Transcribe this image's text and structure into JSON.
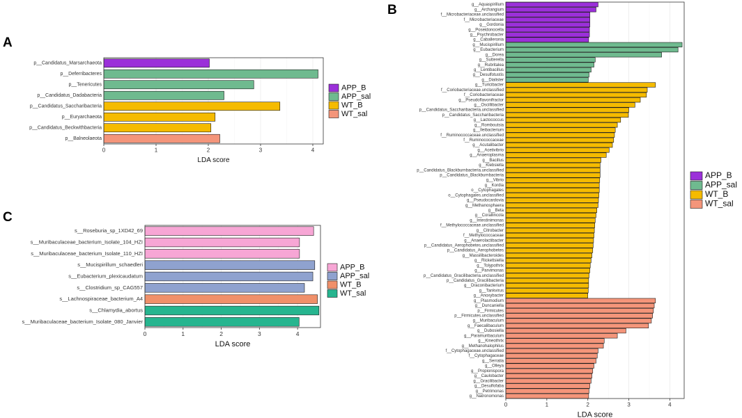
{
  "colors": {
    "APP_B": "#9b30d9",
    "APP_sal": "#6fba8f",
    "WT_B": "#f5bb00",
    "WT_sal": "#f4957a",
    "C_APP_B": "#f7a6d5",
    "C_APP_sal": "#8fa2cf",
    "C_WT_B": "#f0906a",
    "C_WT_sal": "#26b58f"
  },
  "chart_data": [
    {
      "panel": "A",
      "type": "bar",
      "orientation": "horizontal",
      "xlabel": "LDA score",
      "ylabel": "",
      "xlim": [
        0,
        4.2
      ],
      "ticks": [
        0,
        1,
        2,
        3,
        4
      ],
      "grid": true,
      "legend_position": "right",
      "legend": [
        {
          "label": "APP_B",
          "color_key": "APP_B"
        },
        {
          "label": "APP_sal",
          "color_key": "APP_sal"
        },
        {
          "label": "WT_B",
          "color_key": "WT_B"
        },
        {
          "label": "WT_sal",
          "color_key": "WT_sal"
        }
      ],
      "bars": [
        {
          "label": "p__Candidatus_Marsarchaeota",
          "value": 2.02,
          "group": "APP_B"
        },
        {
          "label": "p__Deferribacteres",
          "value": 4.1,
          "group": "APP_sal"
        },
        {
          "label": "p__Tenericutes",
          "value": 2.87,
          "group": "APP_sal"
        },
        {
          "label": "p__Candidatus_Dadabacteria",
          "value": 2.3,
          "group": "APP_sal"
        },
        {
          "label": "p__Candidatus_Saccharibacteria",
          "value": 3.37,
          "group": "WT_B"
        },
        {
          "label": "p__Euryarchaeota",
          "value": 2.13,
          "group": "WT_B"
        },
        {
          "label": "p__Candidatus_Beckwithbacteria",
          "value": 2.05,
          "group": "WT_B"
        },
        {
          "label": "p__Balneolaeota",
          "value": 2.22,
          "group": "WT_sal"
        }
      ]
    },
    {
      "panel": "B",
      "type": "bar",
      "orientation": "horizontal",
      "xlabel": "LDA score",
      "ylabel": "",
      "xlim": [
        0,
        4.35
      ],
      "ticks": [
        0,
        1,
        2,
        3,
        4
      ],
      "grid": true,
      "legend_position": "right",
      "legend": [
        {
          "label": "APP_B",
          "color_key": "APP_B"
        },
        {
          "label": "APP_sal",
          "color_key": "APP_sal"
        },
        {
          "label": "WT_B",
          "color_key": "WT_B"
        },
        {
          "label": "WT_sal",
          "color_key": "WT_sal"
        }
      ],
      "bars": [
        {
          "label": "g__Aquaspirillum",
          "value": 2.25,
          "group": "APP_B"
        },
        {
          "label": "g__Archangium",
          "value": 2.2,
          "group": "APP_B"
        },
        {
          "label": "f__Microbacteriaceae.unclassified",
          "value": 2.05,
          "group": "APP_B"
        },
        {
          "label": "f__Microbacteriaceae",
          "value": 2.05,
          "group": "APP_B"
        },
        {
          "label": "g__Gordonia",
          "value": 2.05,
          "group": "APP_B"
        },
        {
          "label": "g__Poseidonocella",
          "value": 2.04,
          "group": "APP_B"
        },
        {
          "label": "g__Psychrobacter",
          "value": 2.04,
          "group": "APP_B"
        },
        {
          "label": "g__Caballeronia",
          "value": 2.02,
          "group": "APP_B"
        },
        {
          "label": "g__Mucispirillum",
          "value": 4.3,
          "group": "APP_sal"
        },
        {
          "label": "g__Eubacterium",
          "value": 4.2,
          "group": "APP_sal"
        },
        {
          "label": "g__Dorea",
          "value": 3.8,
          "group": "APP_sal"
        },
        {
          "label": "g__Sutterella",
          "value": 2.18,
          "group": "APP_sal"
        },
        {
          "label": "g__Rubritalea",
          "value": 2.15,
          "group": "APP_sal"
        },
        {
          "label": "g__Lentibacillus",
          "value": 2.08,
          "group": "APP_sal"
        },
        {
          "label": "g__Desulfotustis",
          "value": 2.03,
          "group": "APP_sal"
        },
        {
          "label": "g__Dialister",
          "value": 2.01,
          "group": "APP_sal"
        },
        {
          "label": "g__Turicibacter",
          "value": 3.65,
          "group": "WT_B"
        },
        {
          "label": "f__Coriobacteriaceae.unclassified",
          "value": 3.45,
          "group": "WT_B"
        },
        {
          "label": "f__Coriobacteriaceae",
          "value": 3.43,
          "group": "WT_B"
        },
        {
          "label": "g__Pseudoflavonifractor",
          "value": 3.28,
          "group": "WT_B"
        },
        {
          "label": "g__Oscillibacter",
          "value": 3.15,
          "group": "WT_B"
        },
        {
          "label": "p__Candidatus_Saccharibacteria.unclassified",
          "value": 3.0,
          "group": "WT_B"
        },
        {
          "label": "p__Candidatus_Saccharibacteria",
          "value": 2.99,
          "group": "WT_B"
        },
        {
          "label": "g__Lactococcus",
          "value": 2.8,
          "group": "WT_B"
        },
        {
          "label": "g__Romboutsia",
          "value": 2.72,
          "group": "WT_B"
        },
        {
          "label": "g__Ileibacterium",
          "value": 2.67,
          "group": "WT_B"
        },
        {
          "label": "f__Ruminococcaceae.unclassified",
          "value": 2.65,
          "group": "WT_B"
        },
        {
          "label": "f__Ruminococcaceae",
          "value": 2.63,
          "group": "WT_B"
        },
        {
          "label": "g__Acutalibacter",
          "value": 2.6,
          "group": "WT_B"
        },
        {
          "label": "g__Acetivibrio",
          "value": 2.52,
          "group": "WT_B"
        },
        {
          "label": "g__Anaeroplasma",
          "value": 2.45,
          "group": "WT_B"
        },
        {
          "label": "g__Bacillus",
          "value": 2.32,
          "group": "WT_B"
        },
        {
          "label": "g__Klebsiella",
          "value": 2.3,
          "group": "WT_B"
        },
        {
          "label": "p__Candidatus_Blackburnbacteria.unclassified",
          "value": 2.3,
          "group": "WT_B"
        },
        {
          "label": "p__Candidatus_Blackburnbacteria",
          "value": 2.3,
          "group": "WT_B"
        },
        {
          "label": "g__Vibrio",
          "value": 2.29,
          "group": "WT_B"
        },
        {
          "label": "g__Kordia",
          "value": 2.28,
          "group": "WT_B"
        },
        {
          "label": "o__Cytophagales",
          "value": 2.28,
          "group": "WT_B"
        },
        {
          "label": "o__Cytophagales.unclassified",
          "value": 2.27,
          "group": "WT_B"
        },
        {
          "label": "g__Pseudocardovia",
          "value": 2.26,
          "group": "WT_B"
        },
        {
          "label": "g__Methanosphaera",
          "value": 2.25,
          "group": "WT_B"
        },
        {
          "label": "g__Beta",
          "value": 2.22,
          "group": "WT_B"
        },
        {
          "label": "g__Corallincola",
          "value": 2.2,
          "group": "WT_B"
        },
        {
          "label": "g__Intestinimonas",
          "value": 2.18,
          "group": "WT_B"
        },
        {
          "label": "f__Methylococcaceae.unclassified",
          "value": 2.17,
          "group": "WT_B"
        },
        {
          "label": "g__Citrobacter",
          "value": 2.16,
          "group": "WT_B"
        },
        {
          "label": "f__Methylococcaceae",
          "value": 2.15,
          "group": "WT_B"
        },
        {
          "label": "g__Anaerolactibacter",
          "value": 2.14,
          "group": "WT_B"
        },
        {
          "label": "p__Candidatus_Aerophobetes.unclassified",
          "value": 2.13,
          "group": "WT_B"
        },
        {
          "label": "p__Candidatus_Aerophobetes",
          "value": 2.12,
          "group": "WT_B"
        },
        {
          "label": "g__Massilibacteroides",
          "value": 2.1,
          "group": "WT_B"
        },
        {
          "label": "g__Rickettsiella",
          "value": 2.08,
          "group": "WT_B"
        },
        {
          "label": "g__Tolypothrix",
          "value": 2.06,
          "group": "WT_B"
        },
        {
          "label": "g__Parvimonas",
          "value": 2.05,
          "group": "WT_B"
        },
        {
          "label": "p__Candidatus_Gracilibacteria.unclassified",
          "value": 2.03,
          "group": "WT_B"
        },
        {
          "label": "p__Candidatus_Gracilibacteria",
          "value": 2.02,
          "group": "WT_B"
        },
        {
          "label": "g__Draconibacterium",
          "value": 2.02,
          "group": "WT_B"
        },
        {
          "label": "g__Tankvirus",
          "value": 2.01,
          "group": "WT_B"
        },
        {
          "label": "g__Anoxybacter",
          "value": 2.0,
          "group": "WT_B"
        },
        {
          "label": "g__Plasmodium",
          "value": 3.65,
          "group": "WT_sal"
        },
        {
          "label": "g__Duncaniella",
          "value": 3.62,
          "group": "WT_sal"
        },
        {
          "label": "p__Firmicutes",
          "value": 3.6,
          "group": "WT_sal"
        },
        {
          "label": "p__Firmicutes.unclassified",
          "value": 3.58,
          "group": "WT_sal"
        },
        {
          "label": "g__Muribaculum",
          "value": 3.55,
          "group": "WT_sal"
        },
        {
          "label": "g__Faecalibaculum",
          "value": 3.48,
          "group": "WT_sal"
        },
        {
          "label": "g__Dubosiella",
          "value": 2.93,
          "group": "WT_sal"
        },
        {
          "label": "g__Paramuribaculum",
          "value": 2.72,
          "group": "WT_sal"
        },
        {
          "label": "g__Kineothrix",
          "value": 2.4,
          "group": "WT_sal"
        },
        {
          "label": "g__Methanohalophilus",
          "value": 2.38,
          "group": "WT_sal"
        },
        {
          "label": "f__Cytophagaceae.unclassified",
          "value": 2.25,
          "group": "WT_sal"
        },
        {
          "label": "f__Cytophagaceae",
          "value": 2.23,
          "group": "WT_sal"
        },
        {
          "label": "g__Serratia",
          "value": 2.2,
          "group": "WT_sal"
        },
        {
          "label": "g__Olleya",
          "value": 2.15,
          "group": "WT_sal"
        },
        {
          "label": "g__Propionispora",
          "value": 2.12,
          "group": "WT_sal"
        },
        {
          "label": "g__Caulobacter",
          "value": 2.1,
          "group": "WT_sal"
        },
        {
          "label": "g__Gracilibacter",
          "value": 2.08,
          "group": "WT_sal"
        },
        {
          "label": "g__Desulfofaba",
          "value": 2.05,
          "group": "WT_sal"
        },
        {
          "label": "g__Petrimonas",
          "value": 2.03,
          "group": "WT_sal"
        },
        {
          "label": "g__Natronomonas",
          "value": 2.02,
          "group": "WT_sal"
        }
      ]
    },
    {
      "panel": "C",
      "type": "bar",
      "orientation": "horizontal",
      "xlabel": "LDA score",
      "ylabel": "",
      "xlim": [
        0,
        4.6
      ],
      "ticks": [
        0,
        1,
        2,
        3,
        4
      ],
      "grid": true,
      "legend_position": "right",
      "legend": [
        {
          "label": "APP_B",
          "color_key": "C_APP_B"
        },
        {
          "label": "APP_sal",
          "color_key": "C_APP_sal"
        },
        {
          "label": "WT_B",
          "color_key": "C_WT_B"
        },
        {
          "label": "WT_sal",
          "color_key": "C_WT_sal"
        }
      ],
      "bars": [
        {
          "label": "s__Roseburia_sp_1XD42_69",
          "value": 4.42,
          "group": "C_APP_B"
        },
        {
          "label": "s__Muribaculaceae_bacterium_Isolate_104_HZI",
          "value": 4.05,
          "group": "C_APP_B"
        },
        {
          "label": "s__Muribaculaceae_bacterium_Isolate_110_HZI",
          "value": 4.05,
          "group": "C_APP_B"
        },
        {
          "label": "s__Mucispirillum_schaedleri",
          "value": 4.45,
          "group": "C_APP_sal"
        },
        {
          "label": "s__Eubacterium_plexicaudatum",
          "value": 4.4,
          "group": "C_APP_sal"
        },
        {
          "label": "s__Clostridium_sp_CAG557",
          "value": 4.18,
          "group": "C_APP_sal"
        },
        {
          "label": "s__Lachnospiraceae_bacterium_A4",
          "value": 4.52,
          "group": "C_WT_B"
        },
        {
          "label": "s__Chlamydia_abortus",
          "value": 4.56,
          "group": "C_WT_sal"
        },
        {
          "label": "s__Muribaculaceae_bacterium_Isolate_080_Janvier",
          "value": 4.04,
          "group": "C_WT_sal"
        }
      ]
    }
  ]
}
